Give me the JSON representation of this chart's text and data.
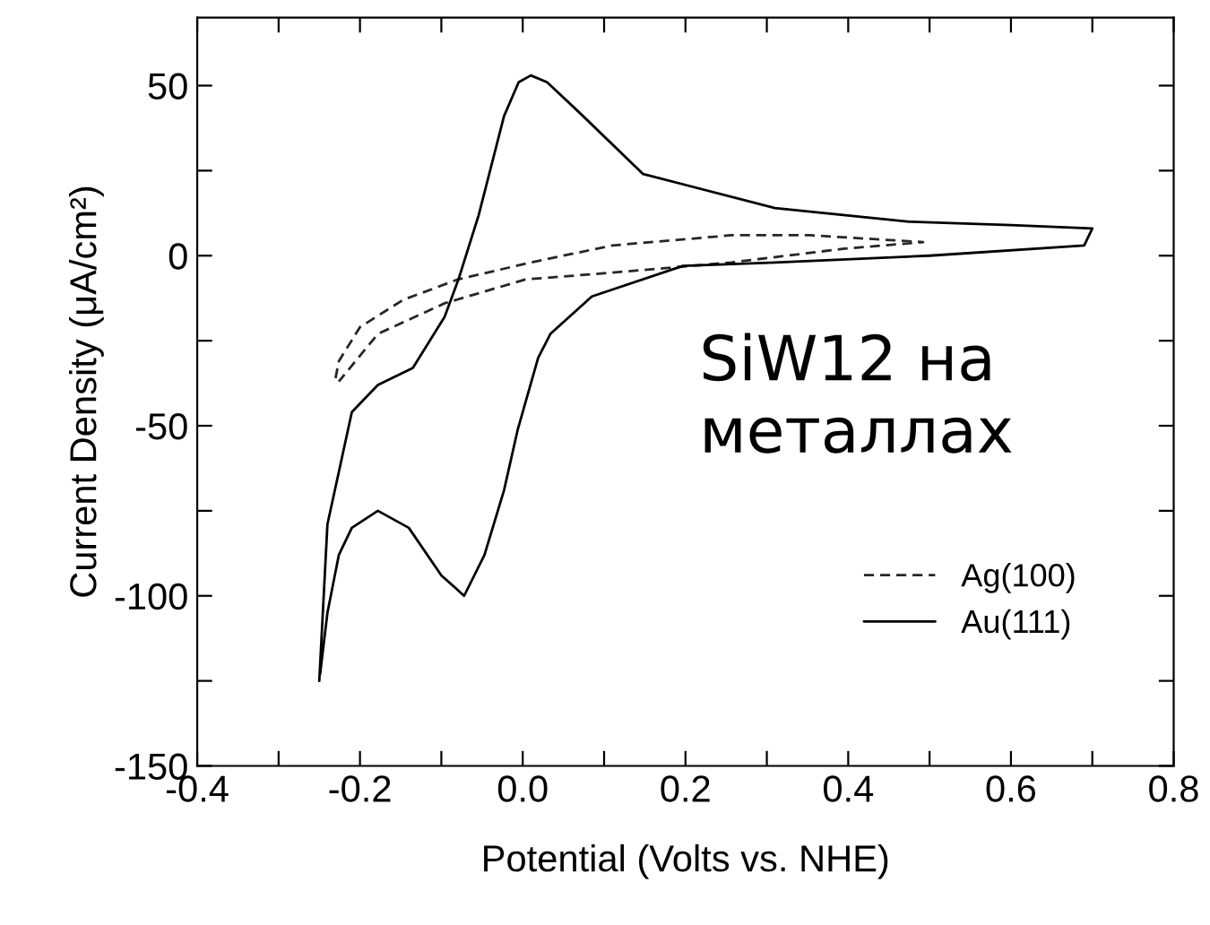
{
  "chart_data": {
    "type": "line",
    "xlabel": "Potential (Volts vs. NHE)",
    "ylabel": "Current Density (μA/cm²)",
    "xlim": [
      -0.4,
      0.8
    ],
    "ylim": [
      -150,
      70
    ],
    "xticks": [
      -0.4,
      {
        "value": -0.3,
        "label": null
      },
      -0.2,
      {
        "value": -0.1,
        "label": null
      },
      {
        "value": 0,
        "label": "0.0"
      },
      {
        "value": 0.1,
        "label": null
      },
      0.2,
      {
        "value": 0.3,
        "label": null
      },
      0.4,
      {
        "value": 0.5,
        "label": null
      },
      0.6,
      {
        "value": 0.7,
        "label": null
      },
      0.8
    ],
    "yticks": [
      50,
      {
        "value": 25,
        "label": null
      },
      0,
      {
        "value": -25,
        "label": null
      },
      -50,
      {
        "value": -75,
        "label": null
      },
      -100,
      {
        "value": -125,
        "label": null
      },
      -150
    ],
    "grid": false,
    "legend": "bottom right",
    "marker": "none",
    "annotations": [
      "SiW12 на металлах"
    ],
    "series": [
      {
        "name": "Ag(100)",
        "color": "#262626",
        "line_style": "dashed",
        "x": [
          -0.23,
          -0.226,
          -0.2,
          -0.147,
          -0.08,
          0.01,
          0.11,
          0.256,
          0.353,
          0.492,
          0.393,
          0.256,
          0.109,
          0.003,
          -0.096,
          -0.178,
          -0.226
        ],
        "values": [
          -36,
          -31,
          -21,
          -13,
          -7,
          -2,
          3,
          6,
          6,
          4,
          2,
          -2,
          -5,
          -7,
          -14,
          -23,
          -37
        ]
      },
      {
        "name": "Au(111)",
        "color": "#000000",
        "line_style": "solid",
        "x": [
          -0.25,
          -0.24,
          -0.21,
          -0.178,
          -0.135,
          -0.096,
          -0.079,
          -0.054,
          -0.023,
          -0.005,
          0.01,
          0.03,
          0.07,
          0.148,
          0.31,
          0.475,
          0.6,
          0.7,
          0.69,
          0.5,
          0.31,
          0.197,
          0.085,
          0.034,
          0.019,
          -0.006,
          -0.023,
          -0.047,
          -0.072,
          -0.1,
          -0.14,
          -0.178,
          -0.21,
          -0.226,
          -0.24,
          -0.249
        ],
        "values": [
          -125,
          -79,
          -46,
          -38,
          -33,
          -18,
          -7,
          12,
          41,
          51,
          53,
          51,
          42,
          24,
          14,
          10,
          9,
          8,
          3,
          0,
          -2,
          -3,
          -12,
          -23,
          -30,
          -51,
          -69,
          -88,
          -100,
          -94,
          -80,
          -75,
          -80,
          -88,
          -105,
          -123
        ]
      }
    ]
  }
}
